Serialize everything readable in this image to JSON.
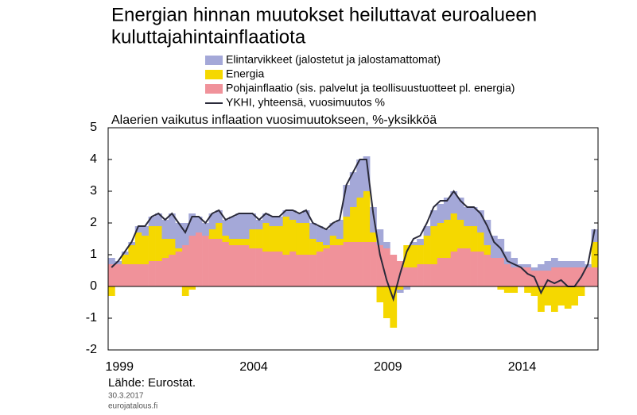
{
  "chart_data": {
    "type": "bar",
    "title": [
      "Energian hinnan muutokset heiluttavat euroalueen",
      "kuluttajahintainflaatiota"
    ],
    "subtitle": "Alaerien vaikutus inflaation vuosimuutokseen, %-yksikköä",
    "source": "Lähde: Eurostat.",
    "date": "30.3.2017",
    "site": "eurojatalous.fi",
    "stacked": true,
    "categories": [
      "1999",
      null,
      null,
      null,
      null,
      null,
      null,
      null,
      null,
      null,
      null,
      null,
      null,
      null,
      null,
      null,
      null,
      null,
      null,
      null,
      "2004",
      null,
      null,
      null,
      null,
      null,
      null,
      null,
      null,
      null,
      null,
      null,
      null,
      null,
      null,
      null,
      null,
      null,
      null,
      null,
      "2009",
      null,
      null,
      null,
      null,
      null,
      null,
      null,
      null,
      null,
      null,
      null,
      null,
      null,
      null,
      null,
      null,
      null,
      null,
      null,
      "2014",
      null,
      null,
      null,
      null,
      null,
      null,
      null,
      null,
      null,
      null,
      null,
      null
    ],
    "series": [
      {
        "name": "Elintarvikkeet (jalostetut ja jalostamattomat)",
        "color": "#a4a8d8",
        "kind": "bar",
        "values": [
          0.2,
          0.1,
          0.1,
          0.1,
          0.2,
          0.3,
          0.3,
          0.4,
          0.6,
          0.8,
          0.8,
          0.7,
          0.7,
          0.5,
          0.4,
          0.5,
          0.4,
          0.5,
          0.7,
          0.8,
          0.8,
          0.5,
          0.3,
          0.3,
          0.3,
          0.3,
          0.2,
          0.3,
          0.3,
          0.4,
          0.5,
          0.5,
          0.5,
          0.4,
          0.6,
          1.0,
          1.1,
          1.2,
          1.1,
          0.8,
          0.5,
          0.2,
          0.0,
          -0.1,
          -0.1,
          0.1,
          0.2,
          0.3,
          0.5,
          0.6,
          0.7,
          0.7,
          0.7,
          0.6,
          0.6,
          0.7,
          0.8,
          0.7,
          0.6,
          0.4,
          0.3,
          0.1,
          0.1,
          0.1,
          0.2,
          0.3,
          0.3,
          0.2,
          0.2,
          0.2,
          0.2,
          0.1,
          0.4
        ]
      },
      {
        "name": "Energia",
        "color": "#f5d800",
        "kind": "bar",
        "values": [
          -0.3,
          0.0,
          0.3,
          0.6,
          1.0,
          0.9,
          1.1,
          1.1,
          0.6,
          0.5,
          0.1,
          -0.3,
          -0.1,
          0.0,
          0.0,
          0.3,
          0.5,
          0.2,
          0.2,
          0.2,
          0.2,
          0.6,
          0.6,
          0.9,
          0.8,
          0.8,
          1.2,
          1.0,
          1.0,
          1.0,
          0.5,
          0.3,
          0.1,
          0.3,
          0.2,
          0.8,
          1.1,
          1.4,
          1.6,
          0.3,
          -0.5,
          -1.0,
          -1.3,
          -0.1,
          0.7,
          0.7,
          0.6,
          0.9,
          1.2,
          1.1,
          1.2,
          1.2,
          0.9,
          0.7,
          0.8,
          0.6,
          0.3,
          0.0,
          -0.1,
          -0.2,
          -0.2,
          0.0,
          -0.2,
          -0.3,
          -0.8,
          -0.6,
          -0.8,
          -0.6,
          -0.7,
          -0.6,
          -0.3,
          0.0,
          0.8
        ]
      },
      {
        "name": "Pohjainflaatio (sis. palvelut ja teollisuustuotteet pl. energia)",
        "color": "#f0929a",
        "kind": "bar",
        "values": [
          0.7,
          0.7,
          0.7,
          0.7,
          0.7,
          0.7,
          0.8,
          0.8,
          0.9,
          1.0,
          1.1,
          1.3,
          1.6,
          1.7,
          1.6,
          1.5,
          1.5,
          1.4,
          1.3,
          1.3,
          1.3,
          1.2,
          1.2,
          1.1,
          1.1,
          1.1,
          1.0,
          1.1,
          1.0,
          1.0,
          1.0,
          1.1,
          1.2,
          1.3,
          1.3,
          1.4,
          1.4,
          1.4,
          1.4,
          1.4,
          1.3,
          1.2,
          1.0,
          0.8,
          0.6,
          0.6,
          0.7,
          0.7,
          0.7,
          0.9,
          0.9,
          1.1,
          1.2,
          1.2,
          1.1,
          1.1,
          1.0,
          0.9,
          0.9,
          0.7,
          0.6,
          0.6,
          0.6,
          0.5,
          0.5,
          0.5,
          0.6,
          0.6,
          0.6,
          0.6,
          0.6,
          0.6,
          0.6
        ]
      },
      {
        "name": "YKHI, yhteensä, vuosimuutos %",
        "color": "#2a2a3a",
        "kind": "line",
        "values": [
          0.6,
          0.8,
          1.1,
          1.4,
          1.9,
          1.9,
          2.2,
          2.3,
          2.1,
          2.3,
          2.0,
          1.7,
          2.2,
          2.2,
          2.0,
          2.3,
          2.4,
          2.1,
          2.2,
          2.3,
          2.3,
          2.3,
          2.1,
          2.3,
          2.2,
          2.2,
          2.4,
          2.4,
          2.3,
          2.4,
          2.0,
          1.9,
          1.8,
          2.0,
          2.1,
          3.2,
          3.6,
          4.0,
          4.0,
          2.3,
          1.0,
          0.2,
          -0.4,
          0.4,
          1.1,
          1.5,
          1.6,
          2.0,
          2.5,
          2.7,
          2.7,
          3.0,
          2.7,
          2.5,
          2.5,
          2.3,
          1.9,
          1.4,
          1.2,
          0.8,
          0.7,
          0.6,
          0.4,
          0.3,
          -0.2,
          0.2,
          0.1,
          0.2,
          0.0,
          0.0,
          0.3,
          0.7,
          1.8
        ]
      }
    ],
    "ylim": [
      -2,
      5
    ],
    "yticks": [
      -2,
      -1,
      0,
      1,
      2,
      3,
      4,
      5
    ]
  }
}
